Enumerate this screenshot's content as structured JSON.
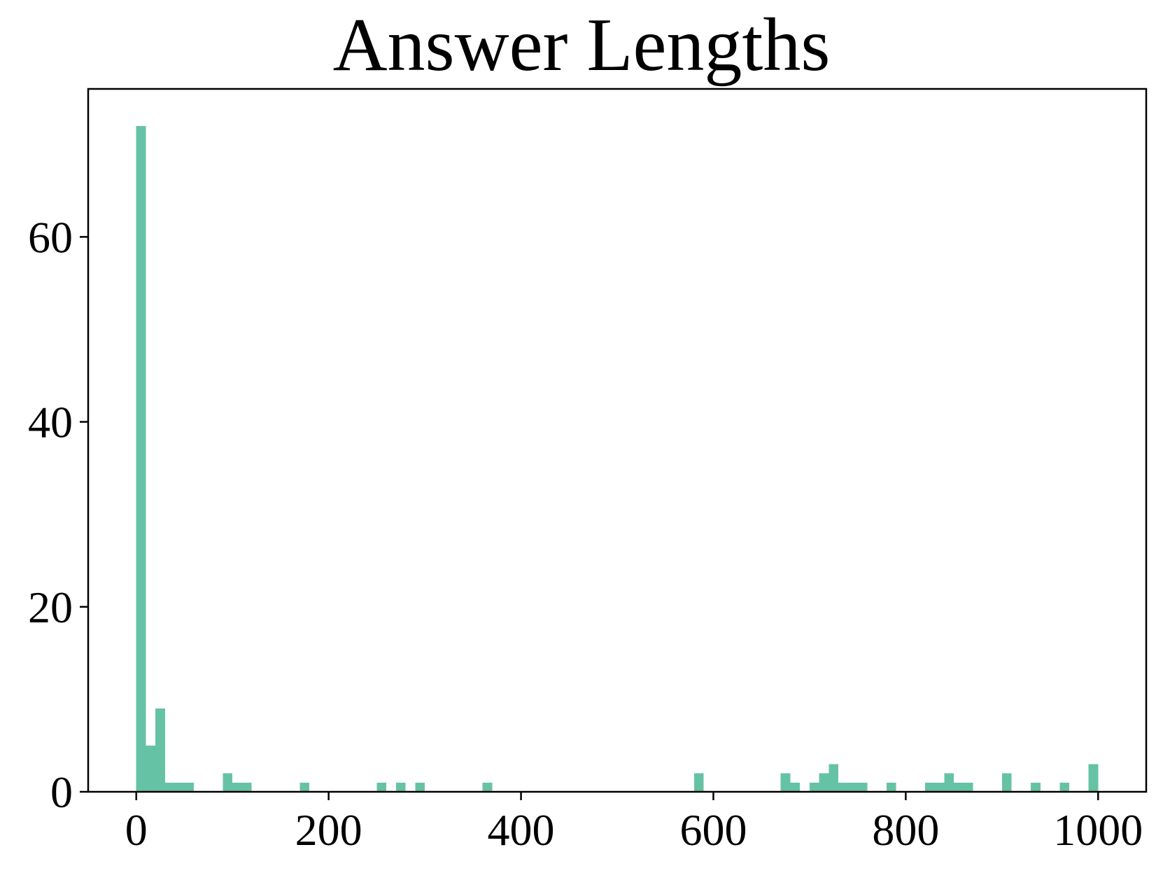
{
  "chart_data": {
    "type": "bar",
    "title": "Answer Lengths",
    "xlabel": "",
    "ylabel": "",
    "bar_color": "#66c2a5",
    "xlim": [
      -50,
      1050
    ],
    "ylim": [
      0,
      76
    ],
    "xticks": [
      0,
      200,
      400,
      600,
      800,
      1000
    ],
    "yticks": [
      0,
      20,
      40,
      60
    ],
    "grid": false,
    "bin_width": 10,
    "bins": [
      {
        "x0": 0,
        "count": 72
      },
      {
        "x0": 10,
        "count": 5
      },
      {
        "x0": 20,
        "count": 9
      },
      {
        "x0": 30,
        "count": 1
      },
      {
        "x0": 40,
        "count": 1
      },
      {
        "x0": 50,
        "count": 1
      },
      {
        "x0": 90,
        "count": 2
      },
      {
        "x0": 100,
        "count": 1
      },
      {
        "x0": 110,
        "count": 1
      },
      {
        "x0": 170,
        "count": 1
      },
      {
        "x0": 250,
        "count": 1
      },
      {
        "x0": 270,
        "count": 1
      },
      {
        "x0": 290,
        "count": 1
      },
      {
        "x0": 360,
        "count": 1
      },
      {
        "x0": 580,
        "count": 2
      },
      {
        "x0": 670,
        "count": 2
      },
      {
        "x0": 680,
        "count": 1
      },
      {
        "x0": 700,
        "count": 1
      },
      {
        "x0": 710,
        "count": 2
      },
      {
        "x0": 720,
        "count": 3
      },
      {
        "x0": 730,
        "count": 1
      },
      {
        "x0": 740,
        "count": 1
      },
      {
        "x0": 750,
        "count": 1
      },
      {
        "x0": 780,
        "count": 1
      },
      {
        "x0": 820,
        "count": 1
      },
      {
        "x0": 830,
        "count": 1
      },
      {
        "x0": 840,
        "count": 2
      },
      {
        "x0": 850,
        "count": 1
      },
      {
        "x0": 860,
        "count": 1
      },
      {
        "x0": 900,
        "count": 2
      },
      {
        "x0": 930,
        "count": 1
      },
      {
        "x0": 960,
        "count": 1
      },
      {
        "x0": 990,
        "count": 3
      }
    ]
  }
}
